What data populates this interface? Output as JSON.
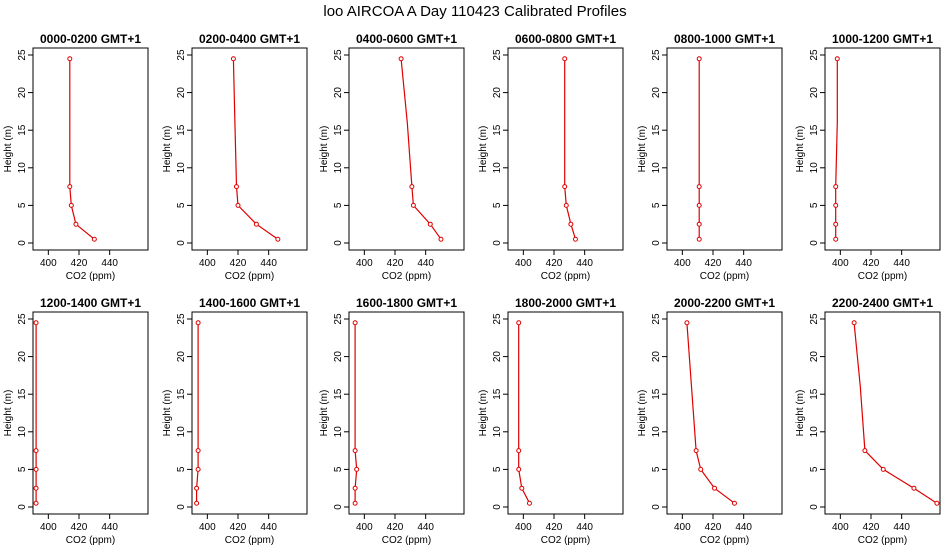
{
  "title": "loo AIRCOA A  Day 110423  Calibrated Profiles",
  "colors": {
    "series": "#e00000",
    "axis": "#000000",
    "background": "#ffffff"
  },
  "chart_data": [
    {
      "type": "line",
      "title": "0000-0200 GMT+1",
      "xlabel": "CO2 (ppm)",
      "ylabel": "Height (m)",
      "xlim": [
        390,
        465
      ],
      "ylim": [
        0,
        25
      ],
      "xticks": [
        400,
        420,
        440
      ],
      "yticks": [
        0,
        5,
        10,
        15,
        20,
        25
      ],
      "grid": false,
      "x": [
        430,
        418,
        415,
        414,
        414,
        414
      ],
      "y": [
        0.5,
        2.5,
        5,
        7.5,
        16,
        24.5
      ],
      "marker_heights": [
        0.5,
        2.5,
        5,
        7.5,
        24.5
      ]
    },
    {
      "type": "line",
      "title": "0200-0400 GMT+1",
      "xlabel": "CO2 (ppm)",
      "ylabel": "Height (m)",
      "xlim": [
        390,
        465
      ],
      "ylim": [
        0,
        25
      ],
      "xticks": [
        400,
        420,
        440
      ],
      "yticks": [
        0,
        5,
        10,
        15,
        20,
        25
      ],
      "grid": false,
      "x": [
        446,
        432,
        420,
        419,
        418,
        417
      ],
      "y": [
        0.5,
        2.5,
        5,
        7.5,
        16,
        24.5
      ],
      "marker_heights": [
        0.5,
        2.5,
        5,
        7.5,
        24.5
      ]
    },
    {
      "type": "line",
      "title": "0400-0600 GMT+1",
      "xlabel": "CO2 (ppm)",
      "ylabel": "Height (m)",
      "xlim": [
        390,
        465
      ],
      "ylim": [
        0,
        25
      ],
      "xticks": [
        400,
        420,
        440
      ],
      "yticks": [
        0,
        5,
        10,
        15,
        20,
        25
      ],
      "grid": false,
      "x": [
        450,
        443,
        432,
        431,
        428,
        424
      ],
      "y": [
        0.5,
        2.5,
        5,
        7.5,
        16,
        24.5
      ],
      "marker_heights": [
        0.5,
        2.5,
        5,
        7.5,
        24.5
      ]
    },
    {
      "type": "line",
      "title": "0600-0800 GMT+1",
      "xlabel": "CO2 (ppm)",
      "ylabel": "Height (m)",
      "xlim": [
        390,
        465
      ],
      "ylim": [
        0,
        25
      ],
      "xticks": [
        400,
        420,
        440
      ],
      "yticks": [
        0,
        5,
        10,
        15,
        20,
        25
      ],
      "grid": false,
      "x": [
        434,
        431,
        428,
        427,
        427,
        427
      ],
      "y": [
        0.5,
        2.5,
        5,
        7.5,
        16,
        24.5
      ],
      "marker_heights": [
        0.5,
        2.5,
        5,
        7.5,
        24.5
      ]
    },
    {
      "type": "line",
      "title": "0800-1000 GMT+1",
      "xlabel": "CO2 (ppm)",
      "ylabel": "Height (m)",
      "xlim": [
        390,
        465
      ],
      "ylim": [
        0,
        25
      ],
      "xticks": [
        400,
        420,
        440
      ],
      "yticks": [
        0,
        5,
        10,
        15,
        20,
        25
      ],
      "grid": false,
      "x": [
        411,
        411,
        411,
        411,
        411,
        411
      ],
      "y": [
        0.5,
        2.5,
        5,
        7.5,
        16,
        24.5
      ],
      "marker_heights": [
        0.5,
        2.5,
        5,
        7.5,
        24.5
      ]
    },
    {
      "type": "line",
      "title": "1000-1200 GMT+1",
      "xlabel": "CO2 (ppm)",
      "ylabel": "Height (m)",
      "xlim": [
        390,
        465
      ],
      "ylim": [
        0,
        25
      ],
      "xticks": [
        400,
        420,
        440
      ],
      "yticks": [
        0,
        5,
        10,
        15,
        20,
        25
      ],
      "grid": false,
      "x": [
        397,
        397,
        397,
        397,
        398,
        398
      ],
      "y": [
        0.5,
        2.5,
        5,
        7.5,
        16,
        24.5
      ],
      "marker_heights": [
        0.5,
        2.5,
        5,
        7.5,
        24.5
      ]
    },
    {
      "type": "line",
      "title": "1200-1400 GMT+1",
      "xlabel": "CO2 (ppm)",
      "ylabel": "Height (m)",
      "xlim": [
        390,
        465
      ],
      "ylim": [
        0,
        25
      ],
      "xticks": [
        400,
        420,
        440
      ],
      "yticks": [
        0,
        5,
        10,
        15,
        20,
        25
      ],
      "grid": false,
      "x": [
        392,
        392,
        392,
        392,
        392,
        392
      ],
      "y": [
        0.5,
        2.5,
        5,
        7.5,
        16,
        24.5
      ],
      "marker_heights": [
        0.5,
        2.5,
        5,
        7.5,
        24.5
      ]
    },
    {
      "type": "line",
      "title": "1400-1600 GMT+1",
      "xlabel": "CO2 (ppm)",
      "ylabel": "Height (m)",
      "xlim": [
        390,
        465
      ],
      "ylim": [
        0,
        25
      ],
      "xticks": [
        400,
        420,
        440
      ],
      "yticks": [
        0,
        5,
        10,
        15,
        20,
        25
      ],
      "grid": false,
      "x": [
        393,
        393,
        394,
        394,
        394,
        394
      ],
      "y": [
        0.5,
        2.5,
        5,
        7.5,
        16,
        24.5
      ],
      "marker_heights": [
        0.5,
        2.5,
        5,
        7.5,
        24.5
      ]
    },
    {
      "type": "line",
      "title": "1600-1800 GMT+1",
      "xlabel": "CO2 (ppm)",
      "ylabel": "Height (m)",
      "xlim": [
        390,
        465
      ],
      "ylim": [
        0,
        25
      ],
      "xticks": [
        400,
        420,
        440
      ],
      "yticks": [
        0,
        5,
        10,
        15,
        20,
        25
      ],
      "grid": false,
      "x": [
        394,
        394,
        395,
        394,
        394,
        394
      ],
      "y": [
        0.5,
        2.5,
        5,
        7.5,
        16,
        24.5
      ],
      "marker_heights": [
        0.5,
        2.5,
        5,
        7.5,
        24.5
      ]
    },
    {
      "type": "line",
      "title": "1800-2000 GMT+1",
      "xlabel": "CO2 (ppm)",
      "ylabel": "Height (m)",
      "xlim": [
        390,
        465
      ],
      "ylim": [
        0,
        25
      ],
      "xticks": [
        400,
        420,
        440
      ],
      "yticks": [
        0,
        5,
        10,
        15,
        20,
        25
      ],
      "grid": false,
      "x": [
        404,
        399,
        397,
        397,
        397,
        397
      ],
      "y": [
        0.5,
        2.5,
        5,
        7.5,
        16,
        24.5
      ],
      "marker_heights": [
        0.5,
        2.5,
        5,
        7.5,
        24.5
      ]
    },
    {
      "type": "line",
      "title": "2000-2200 GMT+1",
      "xlabel": "CO2 (ppm)",
      "ylabel": "Height (m)",
      "xlim": [
        390,
        465
      ],
      "ylim": [
        0,
        25
      ],
      "xticks": [
        400,
        420,
        440
      ],
      "yticks": [
        0,
        5,
        10,
        15,
        20,
        25
      ],
      "grid": false,
      "x": [
        434,
        421,
        412,
        409,
        406,
        403
      ],
      "y": [
        0.5,
        2.5,
        5,
        7.5,
        16,
        24.5
      ],
      "marker_heights": [
        0.5,
        2.5,
        5,
        7.5,
        24.5
      ]
    },
    {
      "type": "line",
      "title": "2200-2400 GMT+1",
      "xlabel": "CO2 (ppm)",
      "ylabel": "Height (m)",
      "xlim": [
        390,
        465
      ],
      "ylim": [
        0,
        25
      ],
      "xticks": [
        400,
        420,
        440
      ],
      "yticks": [
        0,
        5,
        10,
        15,
        20,
        25
      ],
      "grid": false,
      "x": [
        463,
        448,
        428,
        416,
        413,
        409
      ],
      "y": [
        0.5,
        2.5,
        5,
        7.5,
        16,
        24.5
      ],
      "marker_heights": [
        0.5,
        2.5,
        5,
        7.5,
        24.5
      ]
    }
  ]
}
